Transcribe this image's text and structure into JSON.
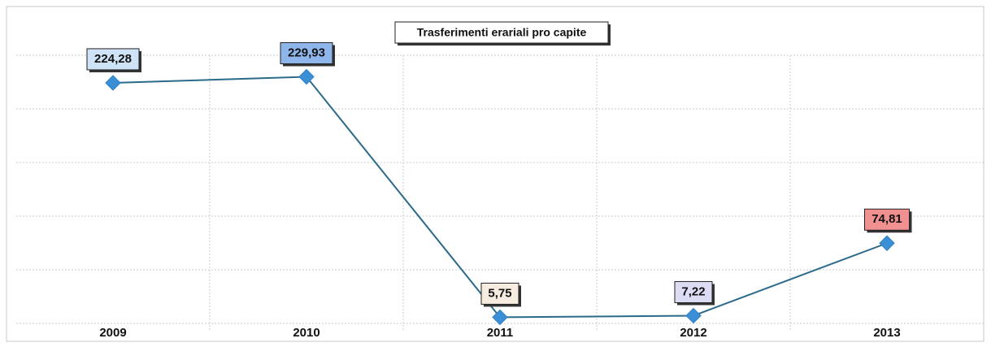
{
  "chart_data": {
    "type": "line",
    "title": "Trasferimenti erariali pro capite",
    "categories": [
      "2009",
      "2010",
      "2011",
      "2012",
      "2013"
    ],
    "series": [
      {
        "name": "Trasferimenti erariali pro capite",
        "color": "#3a8fd6",
        "line_color": "#2a6a8a",
        "values": [
          224.28,
          229.93,
          5.75,
          7.22,
          74.81
        ],
        "value_labels": [
          "224,28",
          "229,93",
          "5,75",
          "7,22",
          "74,81"
        ],
        "label_colors": [
          "#cfe3f7",
          "#8fb6ea",
          "#f6ece0",
          "#dcdcf4",
          "#f09090"
        ]
      }
    ],
    "ylim": [
      0,
      250
    ],
    "yticks": [
      0,
      50,
      100,
      150,
      200,
      250
    ],
    "grid": true
  }
}
